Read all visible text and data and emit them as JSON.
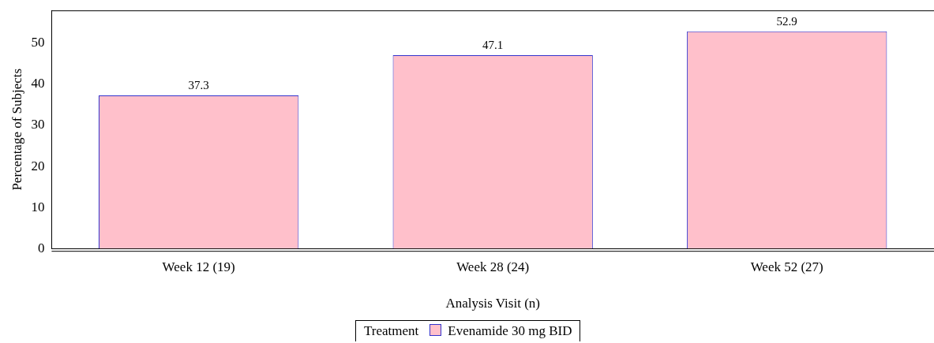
{
  "chart_data": {
    "type": "bar",
    "xlabel": "Analysis Visit (n)",
    "ylabel": "Percentage of Subjects",
    "legend_title": "Treatment",
    "categories": [
      "Week 12 (19)",
      "Week 28 (24)",
      "Week 52 (27)"
    ],
    "series": [
      {
        "name": "Evenamide 30 mg BID",
        "color": "#ffc0cb",
        "values": [
          37.3,
          47.1,
          52.9
        ]
      }
    ],
    "ylim": [
      0,
      58
    ],
    "yticks": [
      0,
      10,
      20,
      30,
      40,
      50
    ],
    "grid": false,
    "legend": "bottom",
    "data_labels": true
  }
}
